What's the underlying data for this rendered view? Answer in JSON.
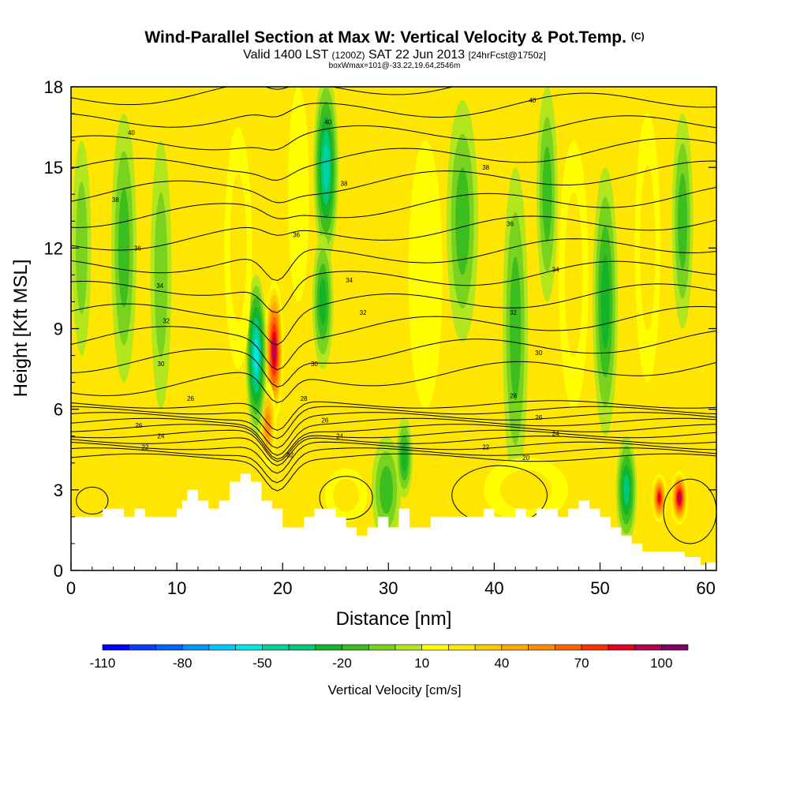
{
  "header": {
    "title": "Wind-Parallel Section at Max W: Vertical Velocity & Pot.Temp.",
    "copyright": "(C)",
    "valid_prefix": "Valid 1400 LST",
    "valid_utc": "(1200Z)",
    "valid_date": "SAT 22 Jun 2013",
    "forecast": "[24hrFcst@1750z]",
    "box_info": "boxWmax=101@-33.22,19.64,2546m"
  },
  "colors": {
    "scale": [
      "#0000ff",
      "#0a3cff",
      "#0064ff",
      "#0096ff",
      "#00c8ff",
      "#00e6e6",
      "#00d2a0",
      "#00c878",
      "#14b428",
      "#3cbe1e",
      "#78d21e",
      "#b4e61e",
      "#ffff00",
      "#ffe600",
      "#ffc800",
      "#ffaa00",
      "#ff8c00",
      "#ff6400",
      "#ff3200",
      "#e6001e",
      "#b40050",
      "#820064"
    ],
    "background_field": "#ffe600",
    "terrain": "#ffffff",
    "contour": "#000000"
  },
  "chart_data": {
    "type": "contour-cross-section",
    "title": "Wind-Parallel Section at Max W: Vertical Velocity & Pot.Temp.",
    "xlabel": "Distance [nm]",
    "ylabel": "Height [Kft MSL]",
    "xlim": [
      0,
      61
    ],
    "ylim": [
      0,
      18
    ],
    "xticks": [
      0,
      10,
      20,
      30,
      40,
      50,
      60
    ],
    "yticks": [
      0,
      3,
      6,
      9,
      12,
      15,
      18
    ],
    "colorbar": {
      "label": "Vertical Velocity [cm/s]",
      "range": [
        -110,
        110
      ],
      "step": 10,
      "tick_labels": [
        "-110",
        "-80",
        "-50",
        "-20",
        "10",
        "40",
        "70",
        "100"
      ],
      "tick_values": [
        -110,
        -80,
        -50,
        -20,
        10,
        40,
        70,
        100
      ]
    },
    "terrain": [
      [
        0,
        2
      ],
      [
        3,
        2
      ],
      [
        3,
        2.3
      ],
      [
        5,
        2.3
      ],
      [
        5,
        2
      ],
      [
        6,
        2
      ],
      [
        6,
        2.3
      ],
      [
        7,
        2.3
      ],
      [
        7,
        2
      ],
      [
        10,
        2
      ],
      [
        10,
        2.3
      ],
      [
        10.5,
        2.3
      ],
      [
        10.5,
        2.6
      ],
      [
        11,
        2.6
      ],
      [
        11,
        3
      ],
      [
        12,
        3
      ],
      [
        12,
        2.6
      ],
      [
        13,
        2.6
      ],
      [
        13,
        2.3
      ],
      [
        14,
        2.3
      ],
      [
        14,
        2.6
      ],
      [
        15,
        2.6
      ],
      [
        15,
        3.3
      ],
      [
        16,
        3.3
      ],
      [
        16,
        3.6
      ],
      [
        17,
        3.6
      ],
      [
        17,
        3.3
      ],
      [
        18,
        3.3
      ],
      [
        18,
        2.6
      ],
      [
        19,
        2.6
      ],
      [
        19,
        2.3
      ],
      [
        20,
        2.3
      ],
      [
        20,
        1.6
      ],
      [
        22,
        1.6
      ],
      [
        22,
        2
      ],
      [
        23,
        2
      ],
      [
        23,
        2.3
      ],
      [
        25,
        2.3
      ],
      [
        25,
        2
      ],
      [
        26,
        2
      ],
      [
        26,
        1.6
      ],
      [
        27,
        1.6
      ],
      [
        27,
        1.3
      ],
      [
        28,
        1.3
      ],
      [
        28,
        1.6
      ],
      [
        29,
        1.6
      ],
      [
        29,
        2
      ],
      [
        30,
        2
      ],
      [
        30,
        1.6
      ],
      [
        31,
        1.6
      ],
      [
        31,
        2.3
      ],
      [
        32,
        2.3
      ],
      [
        32,
        1.6
      ],
      [
        34,
        1.6
      ],
      [
        34,
        2
      ],
      [
        39,
        2
      ],
      [
        39,
        2.3
      ],
      [
        40,
        2.3
      ],
      [
        40,
        2
      ],
      [
        42,
        2
      ],
      [
        42,
        2.3
      ],
      [
        43,
        2.3
      ],
      [
        43,
        2
      ],
      [
        44,
        2
      ],
      [
        44,
        2.3
      ],
      [
        46,
        2.3
      ],
      [
        46,
        2
      ],
      [
        47,
        2
      ],
      [
        47,
        2.3
      ],
      [
        48,
        2.3
      ],
      [
        48,
        2.6
      ],
      [
        49,
        2.6
      ],
      [
        49,
        2.3
      ],
      [
        50,
        2.3
      ],
      [
        50,
        2
      ],
      [
        51,
        2
      ],
      [
        51,
        1.6
      ],
      [
        52,
        1.6
      ],
      [
        52,
        1.3
      ],
      [
        53,
        1.3
      ],
      [
        53,
        1
      ],
      [
        54,
        1
      ],
      [
        54,
        0.7
      ],
      [
        58,
        0.7
      ],
      [
        58,
        0.5
      ],
      [
        59.5,
        0.5
      ],
      [
        59.5,
        0.2
      ],
      [
        60,
        0.2
      ],
      [
        60,
        0.3
      ],
      [
        61,
        0.3
      ]
    ],
    "w_features": [
      {
        "x": 19.2,
        "y": 8.2,
        "rx": 0.9,
        "ry": 2.6,
        "w": 100
      },
      {
        "x": 18.6,
        "y": 5.4,
        "rx": 0.8,
        "ry": 1.6,
        "w": 60
      },
      {
        "x": 17.5,
        "y": 8,
        "rx": 1.0,
        "ry": 3.0,
        "w": -55
      },
      {
        "x": 24.1,
        "y": 15,
        "rx": 1.2,
        "ry": 3.5,
        "w": -45
      },
      {
        "x": 23.8,
        "y": 10,
        "rx": 1.0,
        "ry": 2.5,
        "w": -30
      },
      {
        "x": 57.5,
        "y": 2.7,
        "rx": 0.8,
        "ry": 1.0,
        "w": 100
      },
      {
        "x": 55.6,
        "y": 2.7,
        "rx": 0.7,
        "ry": 0.9,
        "w": 90
      },
      {
        "x": 52.5,
        "y": 3,
        "rx": 1.0,
        "ry": 2.0,
        "w": -40
      },
      {
        "x": 15.8,
        "y": 12,
        "rx": 1.3,
        "ry": 4.5,
        "w": 30
      },
      {
        "x": 33.5,
        "y": 11,
        "rx": 1.6,
        "ry": 5,
        "w": 20
      },
      {
        "x": 47.5,
        "y": 11,
        "rx": 1.4,
        "ry": 5,
        "w": 25
      },
      {
        "x": 37,
        "y": 13,
        "rx": 1.5,
        "ry": 4.5,
        "w": -20
      },
      {
        "x": 42,
        "y": 9,
        "rx": 1.2,
        "ry": 6,
        "w": -20
      },
      {
        "x": 50.5,
        "y": 10,
        "rx": 1.2,
        "ry": 5,
        "w": -25
      },
      {
        "x": 54.5,
        "y": 12,
        "rx": 1.2,
        "ry": 5,
        "w": 30
      },
      {
        "x": 5,
        "y": 12,
        "rx": 1.2,
        "ry": 5,
        "w": -15
      },
      {
        "x": 1,
        "y": 12,
        "rx": 0.9,
        "ry": 4,
        "w": -10
      },
      {
        "x": 57.8,
        "y": 13,
        "rx": 1.0,
        "ry": 4,
        "w": -20
      },
      {
        "x": 29.8,
        "y": 3,
        "rx": 1.4,
        "ry": 2,
        "w": -20
      },
      {
        "x": 31.5,
        "y": 4.2,
        "rx": 0.8,
        "ry": 1.5,
        "w": -30
      },
      {
        "x": 43,
        "y": 3,
        "rx": 4,
        "ry": 1.2,
        "w": 25
      },
      {
        "x": 26,
        "y": 2.8,
        "rx": 2,
        "ry": 1.0,
        "w": 30
      },
      {
        "x": 8.5,
        "y": 11,
        "rx": 1.0,
        "ry": 5,
        "w": -10
      },
      {
        "x": 21.5,
        "y": 14,
        "rx": 1.0,
        "ry": 4,
        "w": 20
      },
      {
        "x": 45,
        "y": 14,
        "rx": 1.0,
        "ry": 4,
        "w": -15
      }
    ],
    "theta_labels": [
      {
        "x": 5.7,
        "y": 16.3,
        "label": "40"
      },
      {
        "x": 24.3,
        "y": 16.7,
        "label": "40"
      },
      {
        "x": 43.6,
        "y": 17.5,
        "label": "40"
      },
      {
        "x": 4.2,
        "y": 13.8,
        "label": "38"
      },
      {
        "x": 25.8,
        "y": 14.4,
        "label": "38"
      },
      {
        "x": 39.2,
        "y": 15.0,
        "label": "38"
      },
      {
        "x": 6.3,
        "y": 12.0,
        "label": "36"
      },
      {
        "x": 21.3,
        "y": 12.5,
        "label": "36"
      },
      {
        "x": 41.5,
        "y": 12.9,
        "label": "36"
      },
      {
        "x": 8.4,
        "y": 10.6,
        "label": "34"
      },
      {
        "x": 26.3,
        "y": 10.8,
        "label": "34"
      },
      {
        "x": 45.8,
        "y": 11.2,
        "label": "34"
      },
      {
        "x": 9.0,
        "y": 9.3,
        "label": "32"
      },
      {
        "x": 27.6,
        "y": 9.6,
        "label": "32"
      },
      {
        "x": 41.8,
        "y": 9.6,
        "label": "32"
      },
      {
        "x": 8.5,
        "y": 7.7,
        "label": "30"
      },
      {
        "x": 23.0,
        "y": 7.7,
        "label": "30"
      },
      {
        "x": 44.2,
        "y": 8.1,
        "label": "30"
      },
      {
        "x": 11.3,
        "y": 6.4,
        "label": "26"
      },
      {
        "x": 22.0,
        "y": 6.4,
        "label": "28"
      },
      {
        "x": 41.8,
        "y": 6.5,
        "label": "28"
      },
      {
        "x": 6.4,
        "y": 5.4,
        "label": "26"
      },
      {
        "x": 24.0,
        "y": 5.6,
        "label": "26"
      },
      {
        "x": 44.2,
        "y": 5.7,
        "label": "26"
      },
      {
        "x": 8.5,
        "y": 5.0,
        "label": "24"
      },
      {
        "x": 25.4,
        "y": 5.0,
        "label": "24"
      },
      {
        "x": 45.8,
        "y": 5.1,
        "label": "24"
      },
      {
        "x": 7.0,
        "y": 4.6,
        "label": "22"
      },
      {
        "x": 20.7,
        "y": 4.3,
        "label": "22"
      },
      {
        "x": 39.2,
        "y": 4.6,
        "label": "22"
      },
      {
        "x": 43.0,
        "y": 4.2,
        "label": "20"
      }
    ]
  }
}
